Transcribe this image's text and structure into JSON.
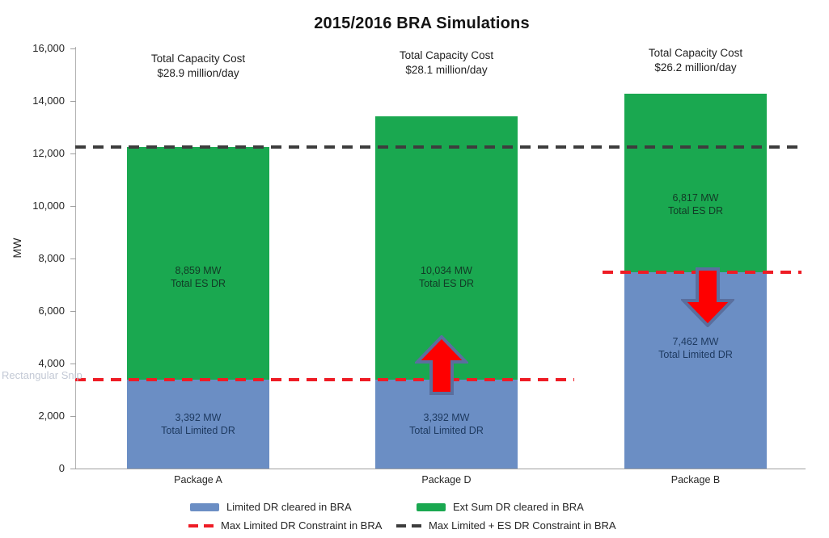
{
  "watermark": "Rectangular Snip",
  "chart_data": {
    "type": "bar",
    "stacked": true,
    "title": "2015/2016 BRA Simulations",
    "ylabel": "MW",
    "xlabel": "",
    "ylim": [
      0,
      16000
    ],
    "ytick_interval": 2000,
    "ytick_labels": [
      "0",
      "2,000",
      "4,000",
      "6,000",
      "8,000",
      "10,000",
      "12,000",
      "14,000",
      "16,000"
    ],
    "grid": false,
    "legend_position": "bottom",
    "categories": [
      "Package A",
      "Package D",
      "Package B"
    ],
    "series": [
      {
        "name": "Limited DR cleared in BRA",
        "color": "#6B8EC4",
        "label_color": "#1E3A60",
        "values": [
          3392,
          3392,
          7462
        ]
      },
      {
        "name": "Ext Sum DR cleared in BRA",
        "color": "#1AA850",
        "label_color": "#123A26",
        "values": [
          8859,
          10034,
          6817
        ]
      }
    ],
    "bar_totals": [
      12251,
      13426,
      14279
    ],
    "bars": [
      {
        "category": "Package A",
        "annotation_lines": [
          "Total Capacity Cost",
          "$28.9 million/day"
        ],
        "segments": [
          {
            "series": "Limited DR cleared in BRA",
            "value": 3392,
            "label_lines": [
              "3,392 MW",
              "Total Limited DR"
            ]
          },
          {
            "series": "Ext Sum DR cleared in BRA",
            "value": 8859,
            "label_lines": [
              "8,859 MW",
              "Total ES DR"
            ]
          }
        ],
        "arrow": null
      },
      {
        "category": "Package D",
        "annotation_lines": [
          "Total Capacity Cost",
          "$28.1 million/day"
        ],
        "segments": [
          {
            "series": "Limited DR cleared in BRA",
            "value": 3392,
            "label_lines": [
              "3,392 MW",
              "Total Limited DR"
            ]
          },
          {
            "series": "Ext Sum DR cleared in BRA",
            "value": 10034,
            "label_lines": [
              "10,034 MW",
              "Total ES DR"
            ]
          }
        ],
        "arrow": "up"
      },
      {
        "category": "Package B",
        "annotation_lines": [
          "Total Capacity Cost",
          "$26.2 million/day"
        ],
        "segments": [
          {
            "series": "Limited DR cleared in BRA",
            "value": 7462,
            "label_lines": [
              "7,462 MW",
              "Total Limited DR"
            ]
          },
          {
            "series": "Ext Sum DR cleared in BRA",
            "value": 6817,
            "label_lines": [
              "6,817 MW",
              "Total ES DR"
            ]
          }
        ],
        "arrow": "down"
      }
    ],
    "constraint_lines": [
      {
        "name": "Max Limited DR Constraint in BRA",
        "color": "#EE1C25",
        "dash": true,
        "segments": [
          {
            "value": 3392,
            "applies_to": [
              "Package A",
              "Package D"
            ]
          },
          {
            "value": 7462,
            "applies_to": [
              "Package B"
            ]
          }
        ]
      },
      {
        "name": "Max Limited + ES DR Constraint in BRA",
        "color": "#3D3D3D",
        "dash": true,
        "segments": [
          {
            "value": 12251,
            "applies_to": [
              "Package A",
              "Package D",
              "Package B"
            ]
          }
        ]
      }
    ],
    "arrow_annotations": [
      {
        "direction": "up",
        "at_category": "Package D",
        "at_value": 3392,
        "color": "#FE0000",
        "border_color": "#5A6F9E"
      },
      {
        "direction": "down",
        "at_category": "Package B",
        "at_value": 7462,
        "color": "#FE0000",
        "border_color": "#5A6F9E"
      }
    ],
    "legend": [
      {
        "label": "Limited DR cleared in BRA",
        "marker": "bar",
        "color": "#6B8EC4"
      },
      {
        "label": "Ext Sum DR cleared in BRA",
        "marker": "bar",
        "color": "#1AA850"
      },
      {
        "label": "Max Limited DR Constraint in BRA",
        "marker": "dashed-line",
        "color": "#EE1C25"
      },
      {
        "label": "Max Limited + ES DR Constraint in BRA",
        "marker": "dashed-line",
        "color": "#3D3D3D"
      }
    ]
  }
}
